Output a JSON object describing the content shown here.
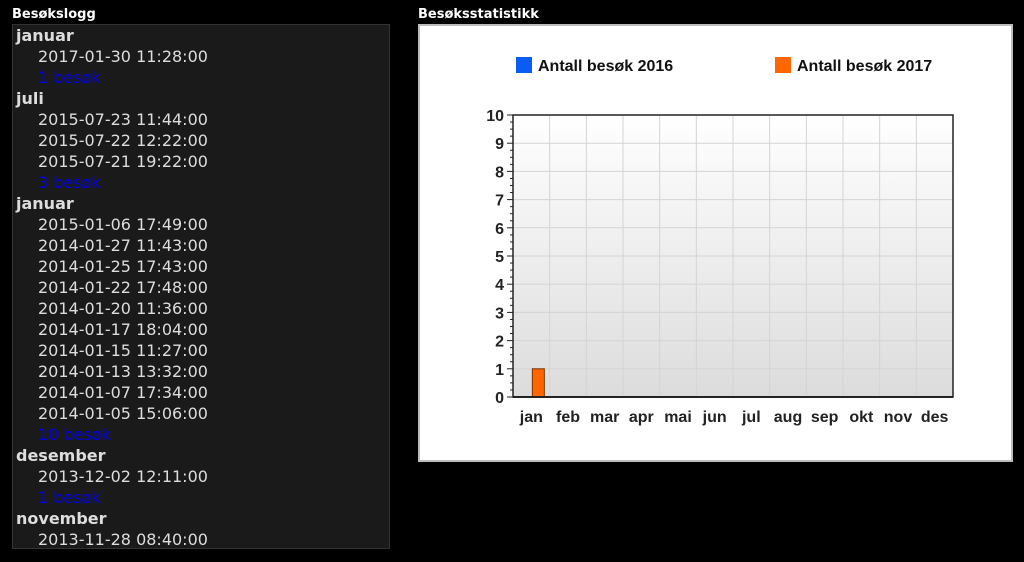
{
  "log": {
    "title": "Besøkslogg",
    "groups": [
      {
        "month": "januar",
        "entries": [
          "2017-01-30 11:28:00"
        ],
        "count": "1 besøk"
      },
      {
        "month": "juli",
        "entries": [
          "2015-07-23 11:44:00",
          "2015-07-22 12:22:00",
          "2015-07-21 19:22:00"
        ],
        "count": "3 besøk"
      },
      {
        "month": "januar",
        "entries": [
          "2015-01-06 17:49:00",
          "2014-01-27 11:43:00",
          "2014-01-25 17:43:00",
          "2014-01-22 17:48:00",
          "2014-01-20 11:36:00",
          "2014-01-17 18:04:00",
          "2014-01-15 11:27:00",
          "2014-01-13 13:32:00",
          "2014-01-07 17:34:00",
          "2014-01-05 15:06:00"
        ],
        "count": "10 besøk"
      },
      {
        "month": "desember",
        "entries": [
          "2013-12-02 12:11:00"
        ],
        "count": "1 besøk"
      },
      {
        "month": "november",
        "entries": [
          "2013-11-28 08:40:00"
        ],
        "count": ""
      }
    ]
  },
  "stats": {
    "title": "Besøksstatistikk"
  },
  "chart_data": {
    "type": "bar",
    "categories": [
      "jan",
      "feb",
      "mar",
      "apr",
      "mai",
      "jun",
      "jul",
      "aug",
      "sep",
      "okt",
      "nov",
      "des"
    ],
    "series": [
      {
        "name": "Antall besøk 2016",
        "color": "#0a5cf5",
        "values": [
          0,
          0,
          0,
          0,
          0,
          0,
          0,
          0,
          0,
          0,
          0,
          0
        ]
      },
      {
        "name": "Antall besøk 2017",
        "color": "#ff6600",
        "values": [
          1,
          0,
          0,
          0,
          0,
          0,
          0,
          0,
          0,
          0,
          0,
          0
        ]
      }
    ],
    "ylim": [
      0,
      10
    ],
    "yticks": [
      "0",
      "1",
      "2",
      "3",
      "4",
      "5",
      "6",
      "7",
      "8",
      "9",
      "10"
    ],
    "grid": true,
    "legend": "top"
  }
}
